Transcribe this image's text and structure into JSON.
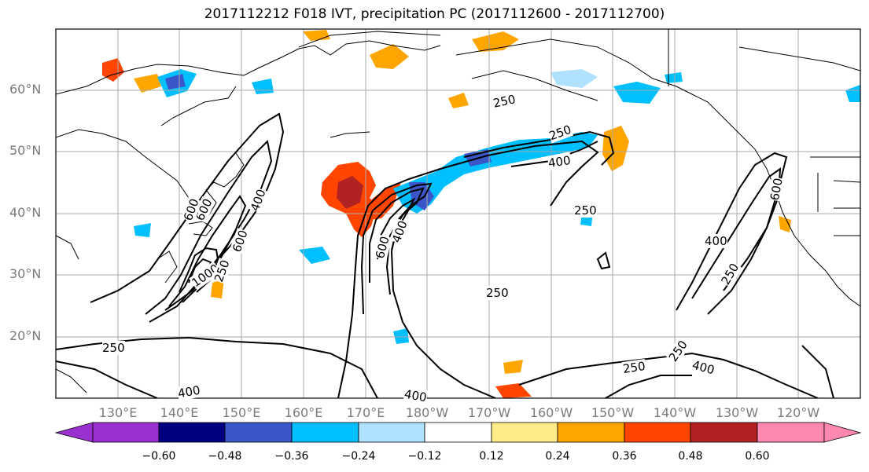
{
  "title": "2017112212 F018 IVT, precipitation PC (2017112600 - 2017112700)",
  "lat_ticks": [
    "60°N",
    "50°N",
    "40°N",
    "30°N",
    "20°N"
  ],
  "lon_ticks": [
    "130°E",
    "140°E",
    "150°E",
    "160°E",
    "170°E",
    "180°W",
    "170°W",
    "160°W",
    "150°W",
    "140°W",
    "130°W",
    "120°W"
  ],
  "contour_labels": [
    "250",
    "250",
    "400",
    "250",
    "400",
    "600",
    "400",
    "600",
    "1000",
    "600",
    "400",
    "600",
    "400",
    "250",
    "250",
    "250",
    "250",
    "400",
    "250",
    "600",
    "400",
    "250"
  ],
  "colorbar": {
    "ticks": [
      "−0.60",
      "−0.48",
      "−0.36",
      "−0.24",
      "−0.12",
      "0.12",
      "0.24",
      "0.36",
      "0.48",
      "0.60"
    ],
    "colors": [
      "#9b30d0",
      "#000080",
      "#3a56c8",
      "#00bfff",
      "#b0e2ff",
      "#ffffff",
      "#ffeb88",
      "#ffa500",
      "#ff4500",
      "#b22222",
      "#ff88b0"
    ]
  }
}
